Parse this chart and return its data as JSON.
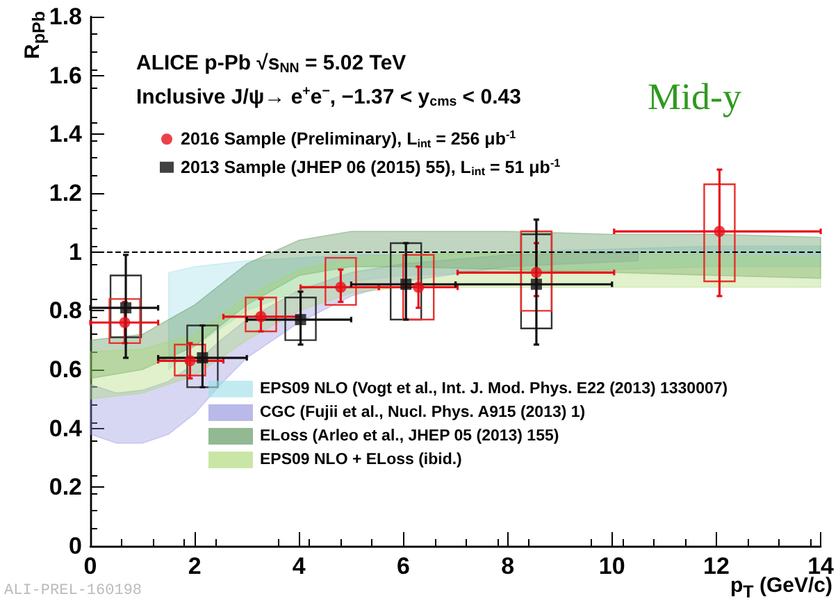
{
  "chart_data": {
    "type": "scatter",
    "xlabel": "p$_{T}$ (GeV/c)",
    "ylabel": "R$_{pPb}$",
    "xlim": [
      0,
      14
    ],
    "xticks": [
      0,
      2,
      4,
      6,
      8,
      10,
      12,
      14
    ],
    "ylim": [
      0,
      1.8
    ],
    "yticks": [
      0,
      0.2,
      0.4,
      0.6,
      0.8,
      1,
      1.2,
      1.4,
      1.6,
      1.8
    ],
    "legend": "left",
    "grid": false,
    "annotations": [
      "ALICE p-Pb √s$_{NN}$ = 5.02 TeV",
      "Inclusive J/ψ→ e$^{+}$e$^{−}$, −1.37 < y$_{cms}$ < 0.43",
      "Mid-y",
      "ALI-PREL-160198"
    ],
    "ref_lines": [
      {
        "axis": "y",
        "value": 1,
        "label": null,
        "color": "#000000",
        "line_style": "dashed"
      }
    ],
    "series": [
      {
        "type": "area",
        "name": "EPS09 NLO (Vogt et al., Int. J. Mod. Phys. E22 (2013) 1330007)",
        "color": "#99dde8",
        "values": [
          null,
          null,
          null,
          null,
          null,
          null,
          null,
          null,
          null,
          null
        ],
        "x": [
          1.5,
          2,
          3,
          4,
          5,
          6,
          8,
          10,
          12,
          14
        ],
        "lower": [
          0.6,
          0.68,
          0.8,
          0.87,
          0.9,
          0.92,
          0.93,
          0.94,
          0.95,
          0.95
        ],
        "upper": [
          0.93,
          0.95,
          0.97,
          0.98,
          0.99,
          0.99,
          1.0,
          1.01,
          1.02,
          1.02
        ]
      },
      {
        "type": "area",
        "name": "CGC (Fujii et al., Nucl. Phys. A915 (2013) 1)",
        "color": "#8c8cdc",
        "values": [
          null,
          null,
          null,
          null,
          null,
          null,
          null,
          null,
          null,
          null,
          null,
          null
        ],
        "x": [
          0,
          0.5,
          1,
          1.5,
          2,
          2.5,
          3,
          4,
          5,
          6,
          8,
          10.5
        ],
        "lower": [
          0.38,
          0.35,
          0.35,
          0.38,
          0.45,
          0.55,
          0.64,
          0.76,
          0.85,
          0.9,
          0.95,
          0.97
        ],
        "upper": [
          0.55,
          0.52,
          0.53,
          0.56,
          0.62,
          0.7,
          0.77,
          0.87,
          0.93,
          0.96,
          0.99,
          1.0
        ]
      },
      {
        "type": "area",
        "name": "ELoss (Arleo et al., JHEP 05 (2013) 155)",
        "color": "#4a8a4a",
        "values": [
          null,
          null,
          null,
          null,
          null,
          null,
          null,
          null,
          null,
          null,
          null
        ],
        "x": [
          0,
          1,
          2,
          3,
          4,
          5,
          6,
          8,
          10,
          12,
          14
        ],
        "lower": [
          0.57,
          0.6,
          0.68,
          0.82,
          0.92,
          0.95,
          0.95,
          0.94,
          0.93,
          0.92,
          0.91
        ],
        "upper": [
          0.7,
          0.72,
          0.82,
          0.96,
          1.04,
          1.07,
          1.07,
          1.07,
          1.06,
          1.06,
          1.05
        ]
      },
      {
        "type": "area",
        "name": "EPS09 NLO + ELoss (ibid.)",
        "color": "#a6d66a",
        "values": [
          null,
          null,
          null,
          null,
          null,
          null,
          null,
          null,
          null,
          null,
          null
        ],
        "x": [
          0,
          1,
          2,
          3,
          4,
          5,
          6,
          8,
          10,
          12,
          14
        ],
        "lower": [
          0.5,
          0.52,
          0.58,
          0.7,
          0.8,
          0.86,
          0.88,
          0.88,
          0.88,
          0.88,
          0.88
        ],
        "upper": [
          0.66,
          0.67,
          0.72,
          0.85,
          0.94,
          0.98,
          0.99,
          1.0,
          0.99,
          0.99,
          0.98
        ]
      },
      {
        "type": "bar",
        "color": "#333333",
        "x": [
          0.68,
          2.15,
          4.03,
          6.05,
          8.55
        ],
        "base": [
          0.71,
          0.54,
          0.7,
          0.77,
          0.74
        ],
        "values": [
          0.21,
          0.21,
          0.145,
          0.26,
          0.32
        ]
      },
      {
        "type": "bar",
        "color": "#e8302a",
        "x": [
          0.66,
          1.91,
          3.27,
          4.8,
          6.29,
          8.55,
          12.06
        ],
        "base": [
          0.69,
          0.58,
          0.73,
          0.82,
          0.77,
          0.8,
          0.9
        ],
        "values": [
          0.15,
          0.105,
          0.115,
          0.16,
          0.22,
          0.27,
          0.33
        ]
      },
      {
        "name": "2016 Sample (Preliminary), L$_{int}$ = 256 μb$^{-1}$",
        "color": "#e8101a",
        "marker": "circle",
        "x": [
          0.66,
          1.91,
          3.27,
          4.8,
          6.29,
          8.55,
          12.06
        ],
        "values": [
          0.76,
          0.63,
          0.78,
          0.88,
          0.88,
          0.93,
          1.07
        ],
        "errors": [
          [
            0.69,
            0.83
          ],
          [
            0.57,
            0.69
          ],
          [
            0.73,
            0.84
          ],
          [
            0.83,
            0.94
          ],
          [
            0.81,
            0.95
          ],
          [
            0.85,
            1.03
          ],
          [
            0.85,
            1.28
          ]
        ],
        "xerrors": [
          [
            0,
            1.3
          ],
          [
            1.3,
            2.55
          ],
          [
            2.55,
            4.03
          ],
          [
            4.03,
            5.53
          ],
          [
            5.53,
            7.04
          ],
          [
            7.04,
            10.04
          ],
          [
            10.04,
            14
          ]
        ]
      },
      {
        "name": "2013 Sample (JHEP 06 (2015) 55), L$_{int}$ = 51 μb$^{-1}$",
        "color": "#111111",
        "marker": "square",
        "x": [
          0.68,
          2.15,
          4.03,
          6.05,
          8.55
        ],
        "values": [
          0.81,
          0.64,
          0.77,
          0.89,
          0.89
        ],
        "errors": [
          [
            0.64,
            0.99
          ],
          [
            0.54,
            0.75
          ],
          [
            0.685,
            0.865
          ],
          [
            0.77,
            1.03
          ],
          [
            0.685,
            1.11
          ]
        ],
        "xerrors": [
          [
            0,
            1.3
          ],
          [
            1.3,
            3
          ],
          [
            3,
            5
          ],
          [
            5,
            7
          ],
          [
            7,
            10
          ]
        ]
      }
    ]
  }
}
